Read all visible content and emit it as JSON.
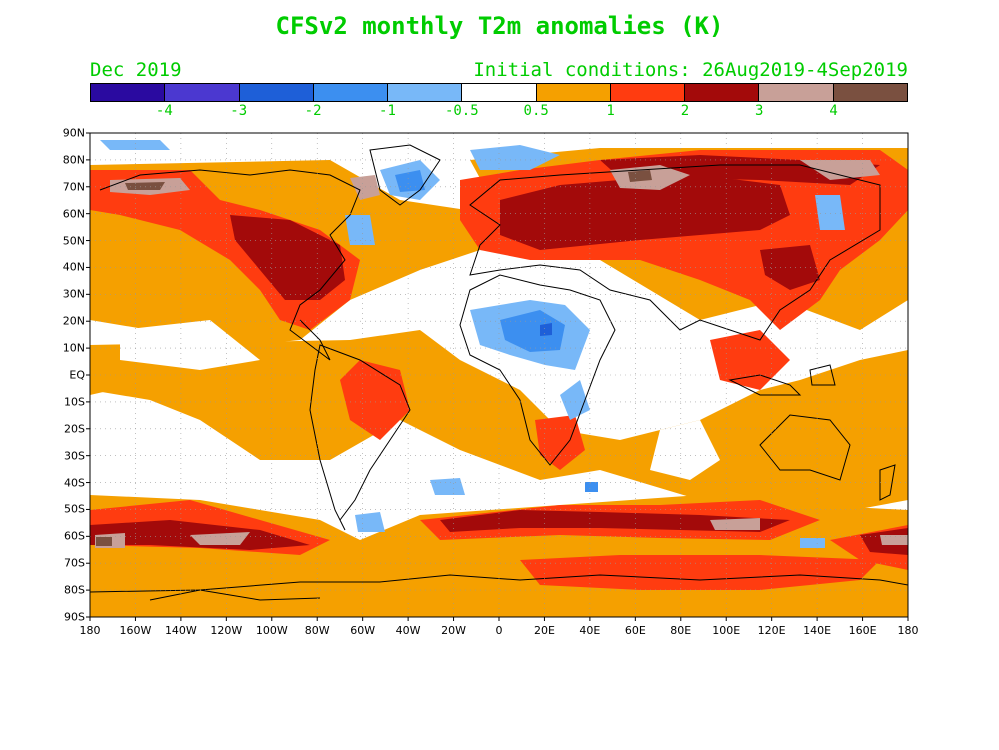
{
  "title": "CFSv2 monthly T2m anomalies (K)",
  "month": "Dec 2019",
  "initial_conditions": "Initial conditions: 26Aug2019-4Sep2019",
  "colorbar": {
    "colors": [
      "#2a0aa0",
      "#4b38d0",
      "#1e5fd8",
      "#3c8ff0",
      "#78b8f8",
      "#ffffff",
      "#f5a000",
      "#ff3c10",
      "#a30a0a",
      "#c8a098",
      "#7a5040"
    ],
    "labels": [
      "-4",
      "-3",
      "-2",
      "-1",
      "-0.5",
      "0.5",
      "1",
      "2",
      "3",
      "4"
    ]
  },
  "lat_labels": [
    "90N",
    "80N",
    "70N",
    "60N",
    "50N",
    "40N",
    "30N",
    "20N",
    "10N",
    "EQ",
    "10S",
    "20S",
    "30S",
    "40S",
    "50S",
    "60S",
    "70S",
    "80S",
    "90S"
  ],
  "lon_labels": [
    "180",
    "160W",
    "140W",
    "120W",
    "100W",
    "80W",
    "60W",
    "40W",
    "20W",
    "0",
    "20E",
    "40E",
    "60E",
    "80E",
    "100E",
    "120E",
    "140E",
    "160E",
    "180"
  ],
  "anomaly_regions": [
    {
      "level": "1",
      "color": "#f5a000",
      "description": "widespread warm anomalies over oceans and continents"
    },
    {
      "level": "2",
      "color": "#ff3c10",
      "description": "North America, Eurasia, Southern Ocean"
    },
    {
      "level": "3",
      "color": "#a30a0a",
      "description": "central North America, Siberia, Southern Ocean band near 60S"
    },
    {
      "level": "4",
      "color": "#c8a098",
      "description": "Arctic Siberia, Alaska, Southern Ocean"
    },
    {
      "level": "-1",
      "color": "#3c8ff0",
      "description": "northern Africa / Sahara, Greenland, North Atlantic"
    }
  ]
}
